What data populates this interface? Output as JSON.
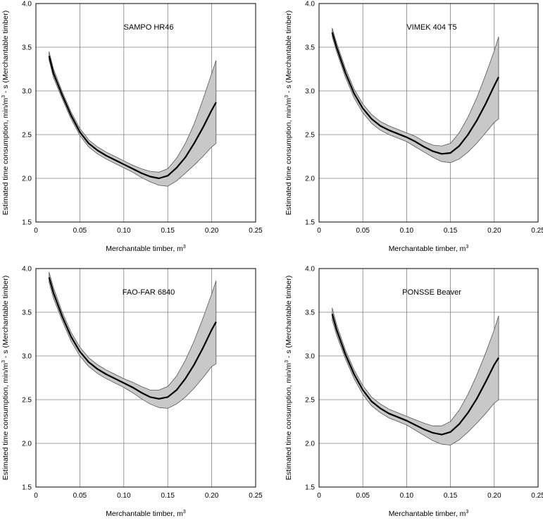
{
  "chart_data": [
    {
      "type": "line",
      "title": "SAMPO HR46",
      "xlabel": "Merchantable timber, m",
      "xlabel_sup": "3",
      "ylabel": "Estimated time consumption, min/m",
      "ylabel_sup": "3",
      "ylabel_tail": " - s (Merchantable timber)",
      "xlim": [
        0,
        0.25
      ],
      "ylim": [
        1.5,
        4.0
      ],
      "xticks": [
        "0",
        "0.05",
        "0.10",
        "0.15",
        "0.20",
        "0.25"
      ],
      "yticks": [
        "1.5",
        "2.0",
        "2.5",
        "3.0",
        "3.5",
        "4.0"
      ],
      "grid": true,
      "x": [
        0.015,
        0.02,
        0.03,
        0.04,
        0.05,
        0.06,
        0.07,
        0.08,
        0.09,
        0.1,
        0.11,
        0.12,
        0.13,
        0.14,
        0.15,
        0.16,
        0.17,
        0.18,
        0.19,
        0.2,
        0.205
      ],
      "series": [
        {
          "values": [
            3.4,
            3.2,
            2.95,
            2.72,
            2.53,
            2.4,
            2.32,
            2.26,
            2.21,
            2.16,
            2.11,
            2.06,
            2.02,
            2.0,
            2.03,
            2.12,
            2.24,
            2.4,
            2.58,
            2.78,
            2.87
          ]
        }
      ],
      "band_upper": [
        3.45,
        3.25,
        2.99,
        2.76,
        2.57,
        2.44,
        2.36,
        2.3,
        2.25,
        2.2,
        2.15,
        2.11,
        2.08,
        2.07,
        2.11,
        2.23,
        2.4,
        2.62,
        2.9,
        3.2,
        3.35
      ],
      "band_lower": [
        3.35,
        3.15,
        2.91,
        2.68,
        2.49,
        2.36,
        2.28,
        2.22,
        2.17,
        2.12,
        2.07,
        2.01,
        1.96,
        1.92,
        1.91,
        1.97,
        2.06,
        2.15,
        2.25,
        2.36,
        2.4
      ]
    },
    {
      "type": "line",
      "title": "VIMEK 404 T5",
      "xlabel": "Merchantable timber, m",
      "xlabel_sup": "3",
      "ylabel": "Estimated time consumption, min/m",
      "ylabel_sup": "3",
      "ylabel_tail": " - s (Merchantable timber)",
      "xlim": [
        0,
        0.25
      ],
      "ylim": [
        1.5,
        4.0
      ],
      "xticks": [
        "0",
        "0.05",
        "0.10",
        "0.15",
        "0.20",
        "0.25"
      ],
      "yticks": [
        "1.5",
        "2.0",
        "2.5",
        "3.0",
        "3.5",
        "4.0"
      ],
      "grid": true,
      "x": [
        0.015,
        0.02,
        0.03,
        0.04,
        0.05,
        0.06,
        0.07,
        0.08,
        0.09,
        0.1,
        0.11,
        0.12,
        0.13,
        0.14,
        0.15,
        0.16,
        0.17,
        0.18,
        0.19,
        0.2,
        0.205
      ],
      "series": [
        {
          "values": [
            3.67,
            3.5,
            3.21,
            2.97,
            2.8,
            2.68,
            2.6,
            2.55,
            2.51,
            2.47,
            2.42,
            2.36,
            2.31,
            2.28,
            2.29,
            2.37,
            2.5,
            2.66,
            2.85,
            3.06,
            3.16
          ]
        }
      ],
      "band_upper": [
        3.72,
        3.55,
        3.26,
        3.02,
        2.85,
        2.73,
        2.65,
        2.6,
        2.56,
        2.52,
        2.48,
        2.42,
        2.38,
        2.37,
        2.4,
        2.52,
        2.7,
        2.92,
        3.18,
        3.46,
        3.62
      ],
      "band_lower": [
        3.62,
        3.45,
        3.16,
        2.92,
        2.75,
        2.63,
        2.55,
        2.5,
        2.46,
        2.42,
        2.36,
        2.3,
        2.24,
        2.19,
        2.18,
        2.22,
        2.3,
        2.4,
        2.52,
        2.64,
        2.68
      ]
    },
    {
      "type": "line",
      "title": "FAO-FAR 6840",
      "xlabel": "Merchantable timber, m",
      "xlabel_sup": "3",
      "ylabel": "Estimated time consumption, min/m",
      "ylabel_sup": "3",
      "ylabel_tail": " - s (Merchantable timber)",
      "xlim": [
        0,
        0.25
      ],
      "ylim": [
        1.5,
        4.0
      ],
      "xticks": [
        "0",
        "0.05",
        "0.10",
        "0.15",
        "0.20",
        "0.25"
      ],
      "yticks": [
        "1.5",
        "2.0",
        "2.5",
        "3.0",
        "3.5",
        "4.0"
      ],
      "grid": true,
      "x": [
        0.015,
        0.02,
        0.03,
        0.04,
        0.05,
        0.06,
        0.07,
        0.08,
        0.09,
        0.1,
        0.11,
        0.12,
        0.13,
        0.14,
        0.15,
        0.16,
        0.17,
        0.18,
        0.19,
        0.2,
        0.205
      ],
      "series": [
        {
          "values": [
            3.9,
            3.72,
            3.45,
            3.22,
            3.05,
            2.93,
            2.85,
            2.79,
            2.74,
            2.69,
            2.64,
            2.58,
            2.53,
            2.51,
            2.53,
            2.61,
            2.74,
            2.9,
            3.09,
            3.3,
            3.39
          ]
        }
      ],
      "band_upper": [
        3.96,
        3.78,
        3.5,
        3.27,
        3.1,
        2.98,
        2.9,
        2.84,
        2.79,
        2.74,
        2.7,
        2.65,
        2.61,
        2.61,
        2.65,
        2.77,
        2.95,
        3.17,
        3.43,
        3.71,
        3.86
      ],
      "band_lower": [
        3.84,
        3.66,
        3.4,
        3.17,
        3.0,
        2.88,
        2.8,
        2.74,
        2.69,
        2.64,
        2.58,
        2.51,
        2.45,
        2.41,
        2.4,
        2.45,
        2.53,
        2.63,
        2.75,
        2.88,
        2.91
      ]
    },
    {
      "type": "line",
      "title": "PONSSE Beaver",
      "xlabel": "Merchantable timber, m",
      "xlabel_sup": "3",
      "ylabel": "Estimated time consumption, min/m",
      "ylabel_sup": "3",
      "ylabel_tail": " - s (Merchantable timber)",
      "xlim": [
        0,
        0.25
      ],
      "ylim": [
        1.5,
        4.0
      ],
      "xticks": [
        "0",
        "0.05",
        "0.10",
        "0.15",
        "0.20",
        "0.25"
      ],
      "yticks": [
        "1.5",
        "2.0",
        "2.5",
        "3.0",
        "3.5",
        "4.0"
      ],
      "grid": true,
      "x": [
        0.015,
        0.02,
        0.03,
        0.04,
        0.05,
        0.06,
        0.07,
        0.08,
        0.09,
        0.1,
        0.11,
        0.12,
        0.13,
        0.14,
        0.15,
        0.16,
        0.17,
        0.18,
        0.19,
        0.2,
        0.205
      ],
      "series": [
        {
          "values": [
            3.48,
            3.3,
            3.02,
            2.79,
            2.61,
            2.48,
            2.4,
            2.34,
            2.3,
            2.26,
            2.21,
            2.16,
            2.12,
            2.1,
            2.13,
            2.22,
            2.35,
            2.51,
            2.7,
            2.9,
            2.98
          ]
        }
      ],
      "band_upper": [
        3.55,
        3.36,
        3.07,
        2.84,
        2.66,
        2.53,
        2.45,
        2.39,
        2.35,
        2.31,
        2.27,
        2.23,
        2.2,
        2.2,
        2.25,
        2.38,
        2.56,
        2.78,
        3.03,
        3.3,
        3.46
      ],
      "band_lower": [
        3.41,
        3.24,
        2.97,
        2.74,
        2.56,
        2.43,
        2.35,
        2.29,
        2.25,
        2.21,
        2.15,
        2.09,
        2.03,
        1.99,
        1.98,
        2.04,
        2.13,
        2.23,
        2.34,
        2.46,
        2.5
      ]
    }
  ]
}
